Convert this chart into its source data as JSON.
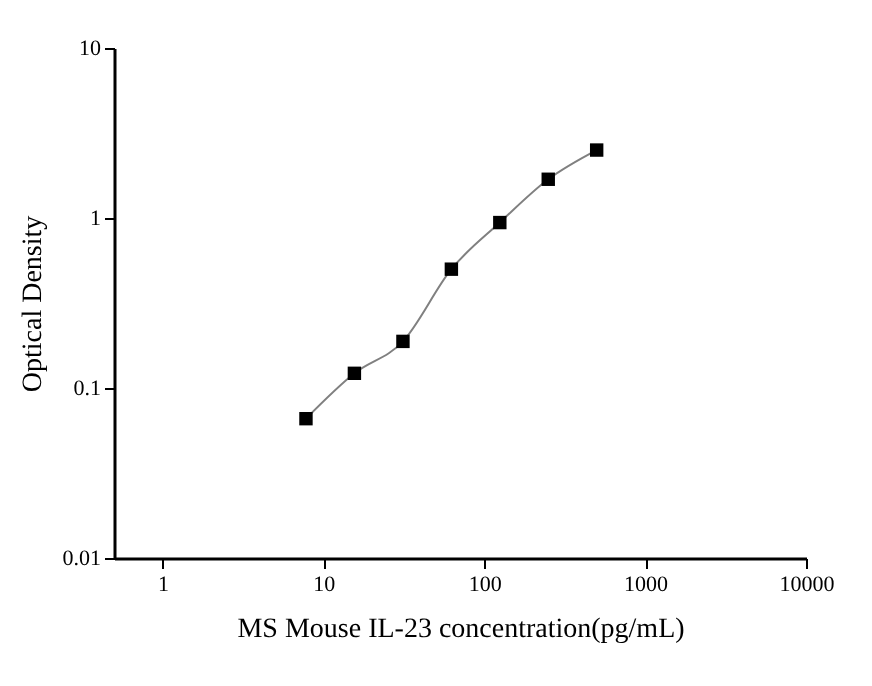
{
  "chart_data": {
    "type": "scatter",
    "xlabel": "MS Mouse IL-23 concentration(pg/mL)",
    "ylabel": "Optical Density",
    "x": [
      7.8,
      15.6,
      31.25,
      62.5,
      125,
      250,
      500
    ],
    "series": [
      {
        "type": "line",
        "color": "#808080",
        "values": [
          0.066,
          0.122,
          0.188,
          0.5,
          0.94,
          1.69,
          2.51
        ]
      },
      {
        "color": "#000000",
        "marker": "square",
        "values": [
          0.066,
          0.122,
          0.188,
          0.5,
          0.94,
          1.69,
          2.51
        ]
      }
    ],
    "log": "xy",
    "xlim": [
      0.5,
      10000
    ],
    "xticks": [
      1,
      10,
      100,
      1000,
      10000
    ],
    "ylim": [
      0.01,
      10
    ],
    "yticks": [
      0.01,
      0.1,
      1,
      10
    ],
    "grid": false
  }
}
